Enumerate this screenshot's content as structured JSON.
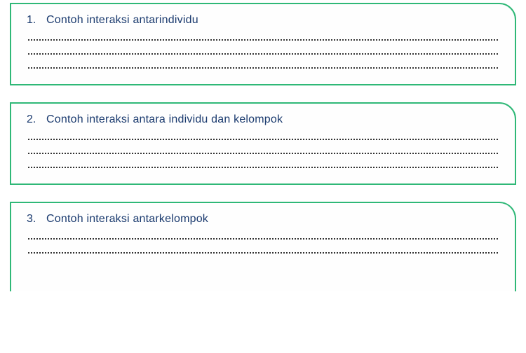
{
  "boxes": [
    {
      "number": "1.",
      "text": "Contoh interaksi antarindividu",
      "lines": 3,
      "partial": false
    },
    {
      "number": "2.",
      "text": "Contoh interaksi antara individu dan kelompok",
      "lines": 3,
      "partial": false
    },
    {
      "number": "3.",
      "text": "Contoh interaksi antarkelompok",
      "lines": 2,
      "partial": true
    }
  ],
  "colors": {
    "border": "#2fb877",
    "text": "#1a3a6e",
    "dotted": "#333333",
    "background": "#ffffff"
  },
  "typography": {
    "font_family": "Arial, sans-serif",
    "question_fontsize": 16
  }
}
